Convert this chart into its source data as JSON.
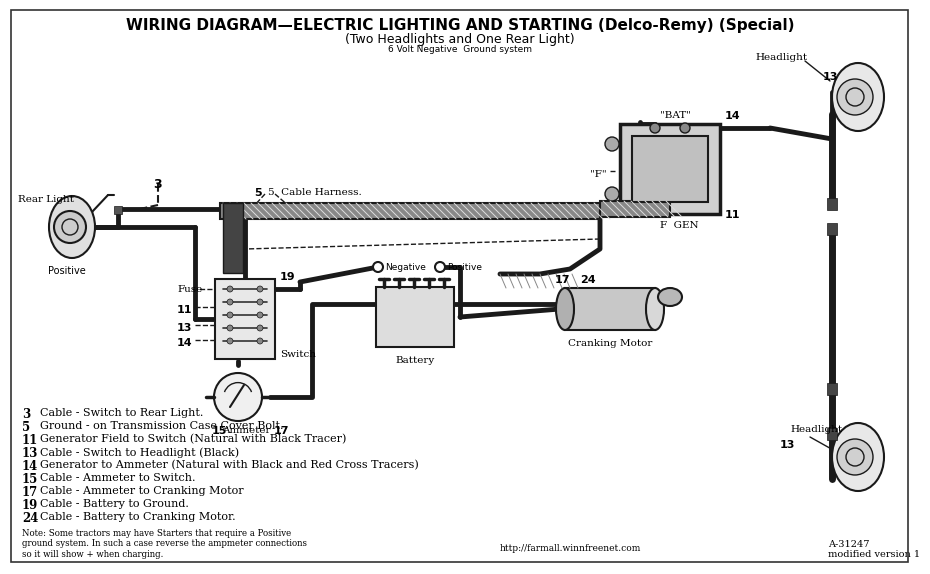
{
  "title1": "WIRING DIAGRAM—ELECTRIC LIGHTING AND STARTING (Delco-Remy) (Special)",
  "title2": "(Two Headlights and One Rear Light)",
  "title3": "6 Volt Negative  Ground system",
  "bg_color": "#ffffff",
  "line_color": "#1a1a1a",
  "legend_items": [
    [
      "3",
      "Cable - Switch to Rear Light."
    ],
    [
      "5",
      "Ground - on Transmission Case Cover Bolt."
    ],
    [
      "11",
      "Generator Field to Switch (Natural with Black Tracer)"
    ],
    [
      "13",
      "Cable - Switch to Headlight (Black)"
    ],
    [
      "14",
      "Generator to Ammeter (Natural with Black and Red Cross Tracers)"
    ],
    [
      "15",
      "Cable - Ammeter to Switch."
    ],
    [
      "17",
      "Cable - Ammeter to Cranking Motor"
    ],
    [
      "19",
      "Cable - Battery to Ground."
    ],
    [
      "24",
      "Cable - Battery to Cranking Motor."
    ]
  ],
  "note": "Note: Some tractors may have Starters that require a Positive\nground system. In such a case reverse the ampmeter connections\nso it will show + when charging.",
  "url": "http://farmall.winnfreenet.com",
  "part_num": "A-31247\nmodified version 1",
  "label_rear_light": "Rear Light",
  "label_positive_left": "Positive",
  "label_cable_harness": "5  Cable Harness.",
  "label_negative": "Negative",
  "label_positive_bat": "Positive",
  "label_battery": "Battery",
  "label_switch": "Switch",
  "label_ammeter": "Ammeter",
  "label_fuse": "Fuse",
  "label_cranking_motor": "Cranking Motor",
  "label_f_gen": "F  GEN",
  "label_f": "\"F\"",
  "label_bat": "\"BAT\"",
  "label_headlight_top": "Headlight",
  "label_headlight_bot": "Headlight"
}
